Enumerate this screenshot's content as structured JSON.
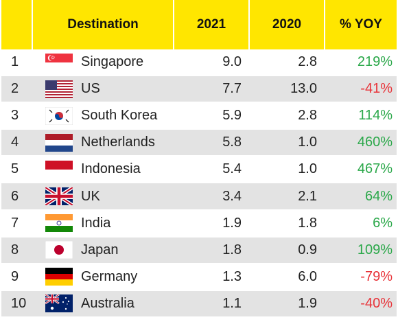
{
  "chart_data": {
    "type": "table",
    "columns": [
      "",
      "Destination",
      "2021",
      "2020",
      "% YOY"
    ],
    "rows": [
      {
        "rank": "1",
        "destination": "Singapore",
        "flag": "singapore-flag",
        "y2021": "9.0",
        "y2020": "2.8",
        "yoy": "219%",
        "yoy_sign": "pos"
      },
      {
        "rank": "2",
        "destination": "US",
        "flag": "us-flag",
        "y2021": "7.7",
        "y2020": "13.0",
        "yoy": "-41%",
        "yoy_sign": "neg"
      },
      {
        "rank": "3",
        "destination": "South Korea",
        "flag": "south-korea-flag",
        "y2021": "5.9",
        "y2020": "2.8",
        "yoy": "114%",
        "yoy_sign": "pos"
      },
      {
        "rank": "4",
        "destination": "Netherlands",
        "flag": "netherlands-flag",
        "y2021": "5.8",
        "y2020": "1.0",
        "yoy": "460%",
        "yoy_sign": "pos"
      },
      {
        "rank": "5",
        "destination": "Indonesia",
        "flag": "indonesia-flag",
        "y2021": "5.4",
        "y2020": "1.0",
        "yoy": "467%",
        "yoy_sign": "pos"
      },
      {
        "rank": "6",
        "destination": "UK",
        "flag": "uk-flag",
        "y2021": "3.4",
        "y2020": "2.1",
        "yoy": "64%",
        "yoy_sign": "pos"
      },
      {
        "rank": "7",
        "destination": "India",
        "flag": "india-flag",
        "y2021": "1.9",
        "y2020": "1.8",
        "yoy": "6%",
        "yoy_sign": "pos"
      },
      {
        "rank": "8",
        "destination": "Japan",
        "flag": "japan-flag",
        "y2021": "1.8",
        "y2020": "0.9",
        "yoy": "109%",
        "yoy_sign": "pos"
      },
      {
        "rank": "9",
        "destination": "Germany",
        "flag": "germany-flag",
        "y2021": "1.3",
        "y2020": "6.0",
        "yoy": "-79%",
        "yoy_sign": "neg"
      },
      {
        "rank": "10",
        "destination": "Australia",
        "flag": "australia-flag",
        "y2021": "1.1",
        "y2020": "1.9",
        "yoy": "-40%",
        "yoy_sign": "neg"
      }
    ],
    "colors": {
      "header": "#FFE600",
      "alt_row": "#e3e3e3",
      "positive": "#2BA84A",
      "negative": "#E8343A"
    }
  }
}
